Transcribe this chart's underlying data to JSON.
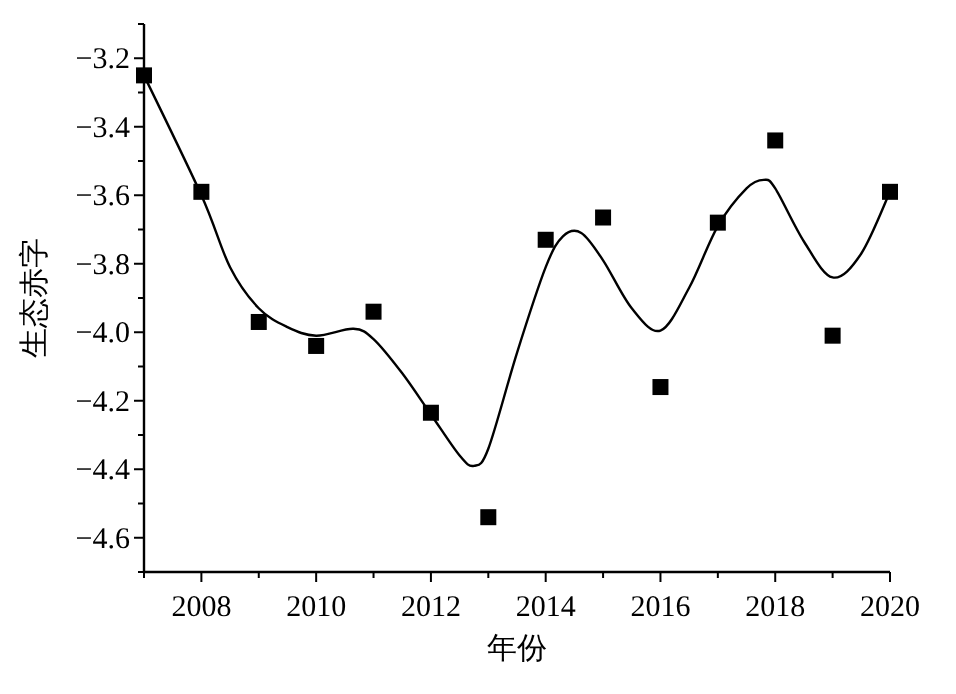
{
  "chart_data": {
    "type": "scatter",
    "xlabel": "年份",
    "ylabel": "生态赤字",
    "xlim": [
      2007,
      2020
    ],
    "ylim": [
      -4.7,
      -3.1
    ],
    "xticks": [
      {
        "value": 2007,
        "label": null
      },
      2008,
      {
        "value": 2009,
        "label": null
      },
      2010,
      {
        "value": 2011,
        "label": null
      },
      2012,
      {
        "value": 2013,
        "label": null
      },
      2014,
      {
        "value": 2015,
        "label": null
      },
      2016,
      {
        "value": 2017,
        "label": null
      },
      2018,
      {
        "value": 2019,
        "label": null
      },
      2020
    ],
    "yticks": [
      {
        "value": -4.7,
        "label": null
      },
      {
        "value": -4.6,
        "label": "−4.6"
      },
      {
        "value": -4.5,
        "label": null
      },
      {
        "value": -4.4,
        "label": "−4.4"
      },
      {
        "value": -4.3,
        "label": null
      },
      {
        "value": -4.2,
        "label": "−4.2"
      },
      {
        "value": -4.1,
        "label": null
      },
      {
        "value": -4.0,
        "label": "−4.0"
      },
      {
        "value": -3.9,
        "label": null
      },
      {
        "value": -3.8,
        "label": "−3.8"
      },
      {
        "value": -3.7,
        "label": null
      },
      {
        "value": -3.6,
        "label": "−3.6"
      },
      {
        "value": -3.5,
        "label": null
      },
      {
        "value": -3.4,
        "label": "−3.4"
      },
      {
        "value": -3.3,
        "label": null
      },
      {
        "value": -3.2,
        "label": "−3.2"
      },
      {
        "value": -3.1,
        "label": null
      }
    ],
    "grid": false,
    "series": [
      {
        "marker": "square",
        "color": "#000000",
        "x": [
          2007,
          2008,
          2009,
          2010,
          2011,
          2012,
          2013,
          2014,
          2015,
          2016,
          2017,
          2018,
          2019,
          2020
        ],
        "values": [
          -3.25,
          -3.59,
          -3.97,
          -4.04,
          -3.94,
          -4.235,
          -4.54,
          -3.73,
          -3.665,
          -4.16,
          -3.68,
          -3.44,
          -4.01,
          -3.59
        ]
      },
      {
        "type": "line",
        "marker": "none",
        "line_style": "solid",
        "color": "#000000",
        "x": [
          2007,
          2008,
          2008.5,
          2009,
          2009.5,
          2010,
          2010.65,
          2011,
          2011.5,
          2012,
          2012.5,
          2012.75,
          2013,
          2013.5,
          2014,
          2014.3,
          2014.62,
          2015,
          2015.5,
          2016,
          2016.5,
          2017,
          2017.5,
          2017.8,
          2018,
          2018.5,
          2019,
          2019.5,
          2020
        ],
        "values": [
          -3.25,
          -3.6,
          -3.81,
          -3.93,
          -3.985,
          -4.01,
          -3.99,
          -4.02,
          -4.12,
          -4.24,
          -4.36,
          -4.39,
          -4.34,
          -4.06,
          -3.81,
          -3.72,
          -3.71,
          -3.79,
          -3.93,
          -3.995,
          -3.87,
          -3.69,
          -3.58,
          -3.555,
          -3.58,
          -3.735,
          -3.84,
          -3.77,
          -3.59
        ]
      }
    ]
  }
}
